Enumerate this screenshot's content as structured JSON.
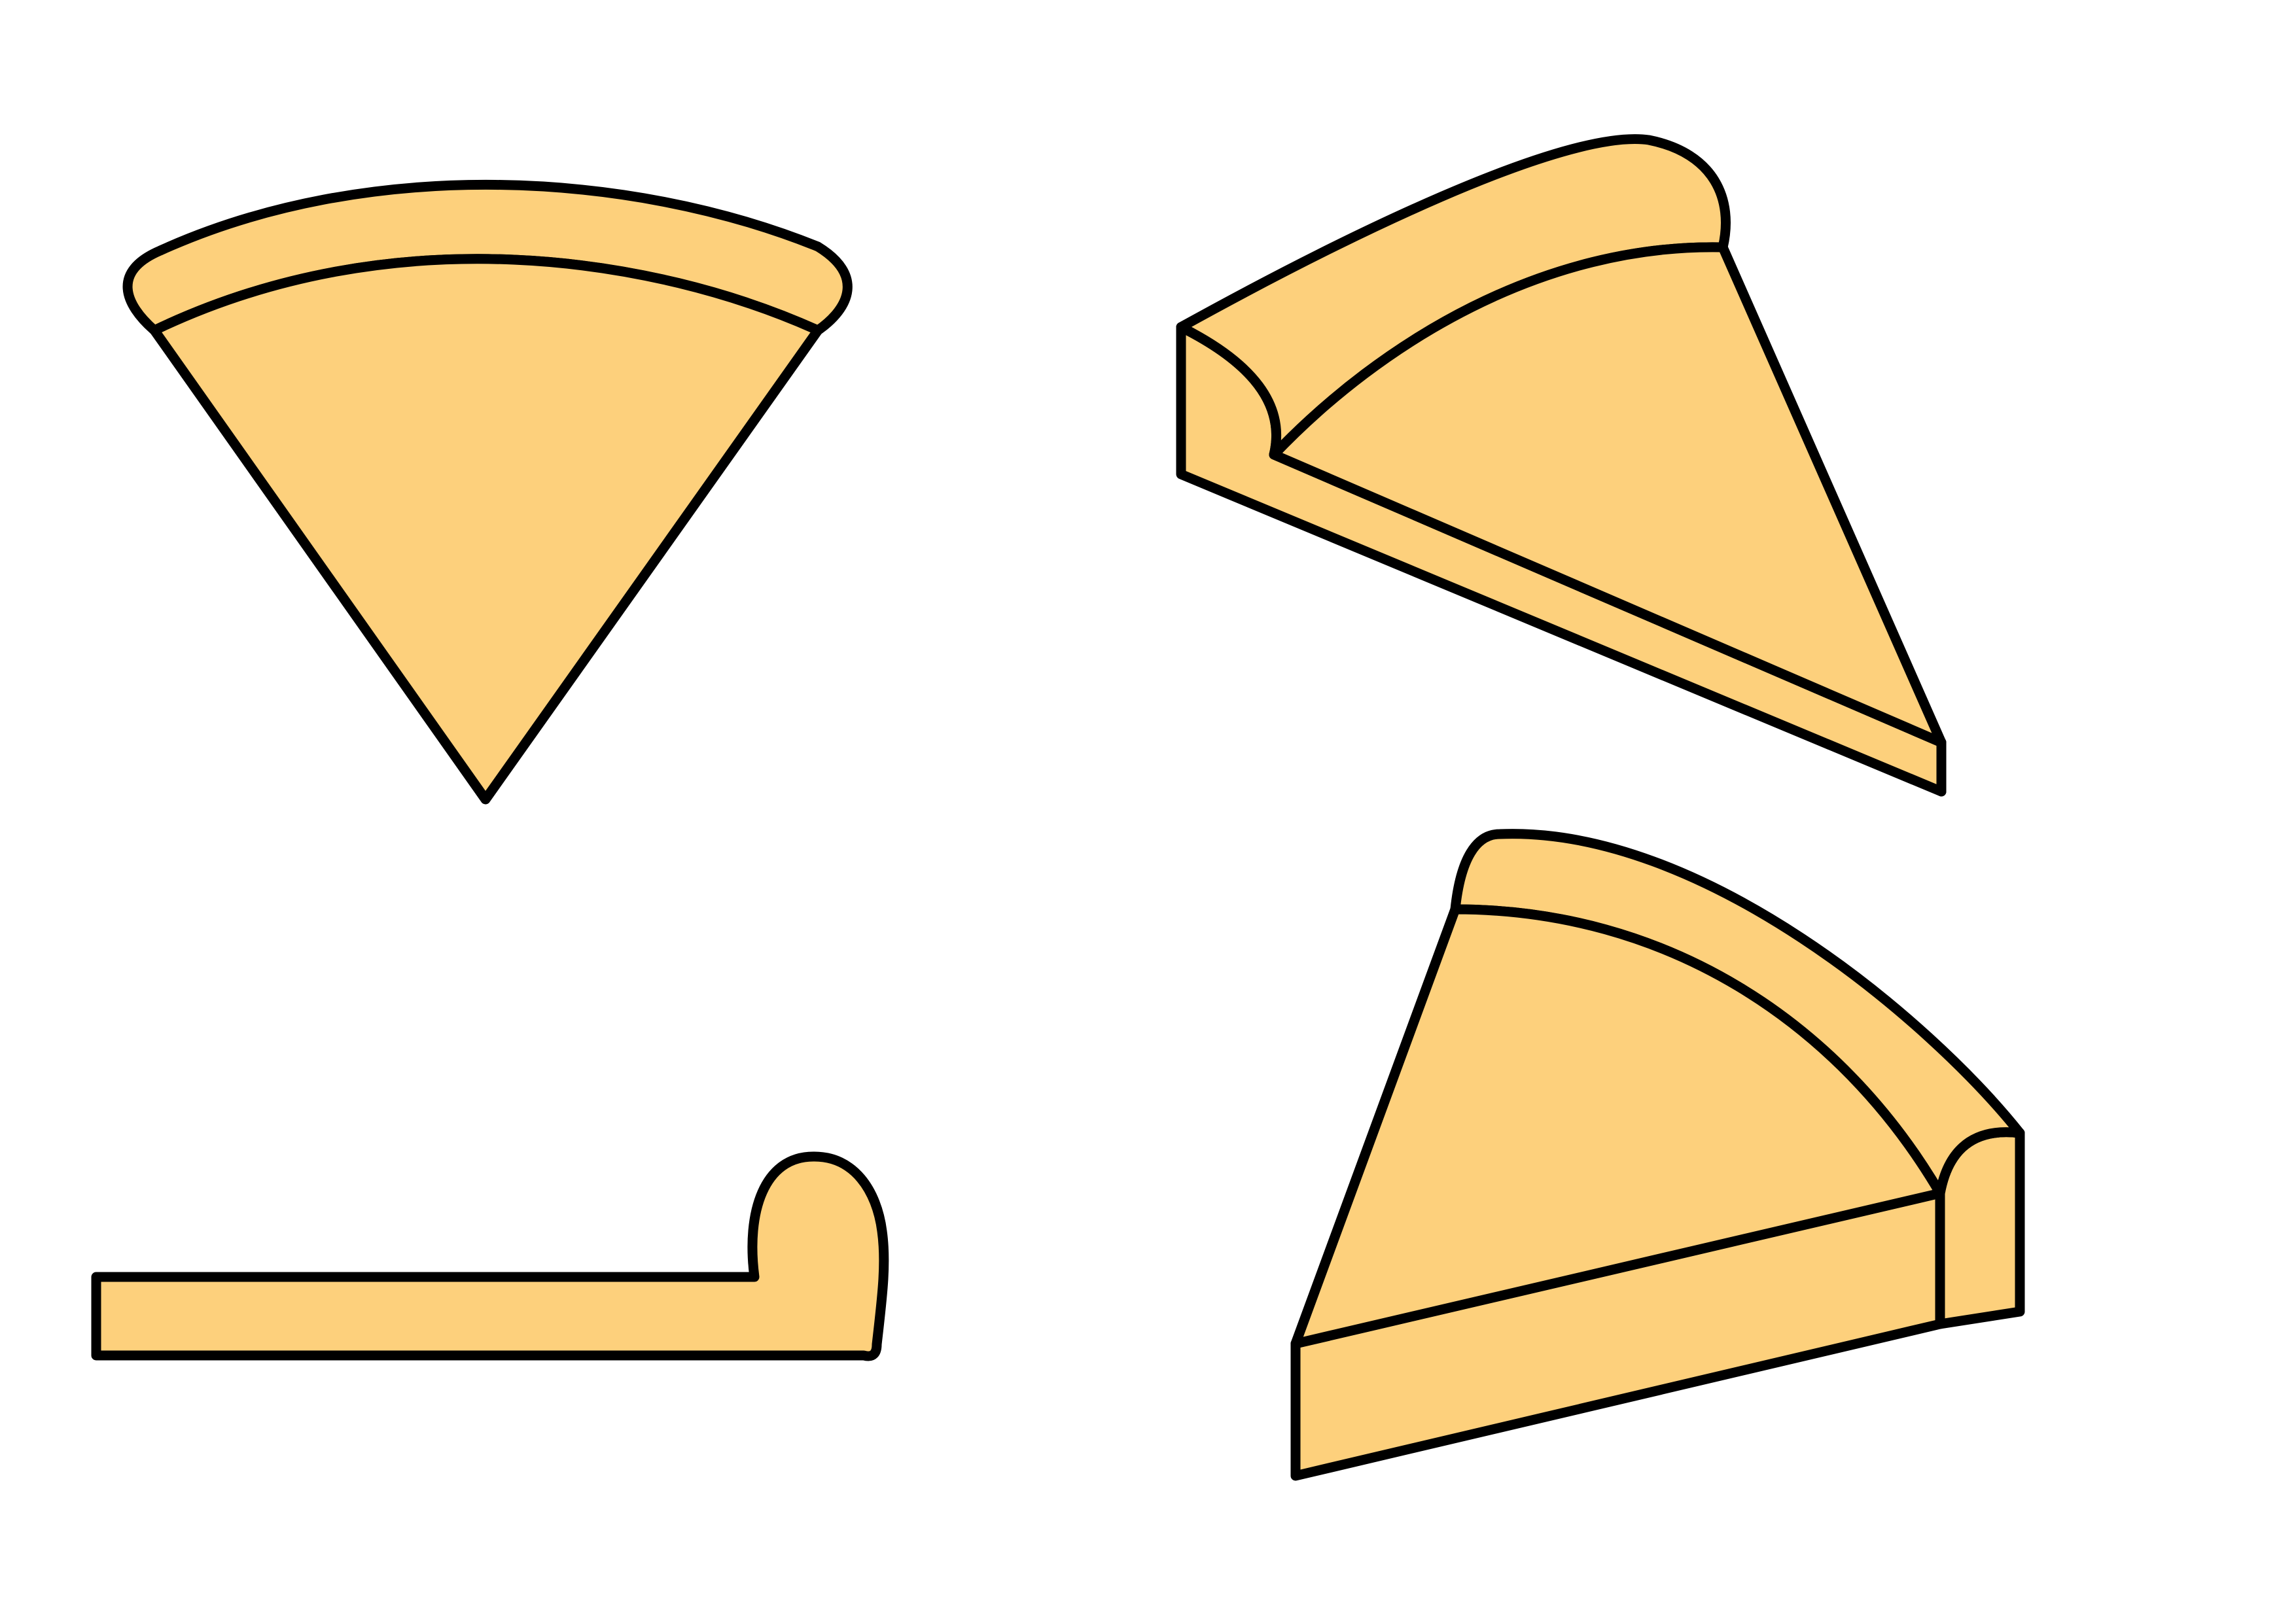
{
  "figure": {
    "views": [
      {
        "id": "top-view",
        "description": ""
      },
      {
        "id": "perspective-view-1",
        "description": ""
      },
      {
        "id": "side-view",
        "description": ""
      },
      {
        "id": "perspective-view-2",
        "description": ""
      }
    ]
  },
  "colors": {
    "fill": "#fdd07c",
    "stroke": "#000000",
    "background": "#ffffff"
  }
}
